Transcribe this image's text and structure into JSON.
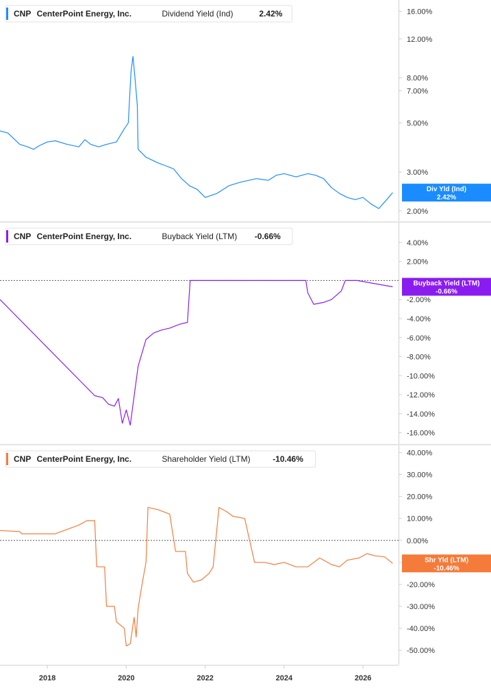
{
  "chart_data": [
    {
      "type": "line",
      "ticker": "CNP",
      "company": "CenterPoint Energy, Inc.",
      "metric": "Dividend Yield (Ind)",
      "current_value": "2.42%",
      "tag_label": "Div Yld (Ind)",
      "tag_value": "2.42%",
      "color": "#1a8cff",
      "y_scale": "log",
      "ylim": [
        1.9,
        17
      ],
      "y_ticks": [
        {
          "v": 16,
          "label": "16.00%"
        },
        {
          "v": 12,
          "label": "12.00%"
        },
        {
          "v": 8,
          "label": "8.00%"
        },
        {
          "v": 7,
          "label": "7.00%"
        },
        {
          "v": 5,
          "label": "5.00%"
        },
        {
          "v": 3,
          "label": "3.00%"
        },
        {
          "v": 2,
          "label": "2.00%"
        }
      ],
      "zero_line": false,
      "series": [
        {
          "values": [
            [
              2016.8,
              4.6
            ],
            [
              2017.0,
              4.5
            ],
            [
              2017.3,
              4.0
            ],
            [
              2017.5,
              3.9
            ],
            [
              2017.65,
              3.8
            ],
            [
              2017.8,
              3.95
            ],
            [
              2018.0,
              4.1
            ],
            [
              2018.2,
              4.15
            ],
            [
              2018.5,
              4.0
            ],
            [
              2018.8,
              3.9
            ],
            [
              2018.95,
              4.2
            ],
            [
              2019.1,
              4.0
            ],
            [
              2019.3,
              3.9
            ],
            [
              2019.5,
              4.0
            ],
            [
              2019.75,
              4.1
            ],
            [
              2019.85,
              4.4
            ],
            [
              2019.95,
              4.7
            ],
            [
              2020.05,
              5.0
            ],
            [
              2020.12,
              8.5
            ],
            [
              2020.17,
              10.0
            ],
            [
              2020.22,
              8.0
            ],
            [
              2020.28,
              6.0
            ],
            [
              2020.3,
              3.8
            ],
            [
              2020.5,
              3.5
            ],
            [
              2020.8,
              3.3
            ],
            [
              2021.0,
              3.2
            ],
            [
              2021.2,
              3.1
            ],
            [
              2021.4,
              2.8
            ],
            [
              2021.6,
              2.6
            ],
            [
              2021.8,
              2.5
            ],
            [
              2022.0,
              2.3
            ],
            [
              2022.3,
              2.4
            ],
            [
              2022.6,
              2.6
            ],
            [
              2022.9,
              2.7
            ],
            [
              2023.3,
              2.8
            ],
            [
              2023.6,
              2.75
            ],
            [
              2023.8,
              2.9
            ],
            [
              2024.0,
              2.95
            ],
            [
              2024.3,
              2.85
            ],
            [
              2024.6,
              2.95
            ],
            [
              2024.8,
              2.9
            ],
            [
              2025.0,
              2.8
            ],
            [
              2025.2,
              2.55
            ],
            [
              2025.4,
              2.4
            ],
            [
              2025.6,
              2.3
            ],
            [
              2025.8,
              2.25
            ],
            [
              2026.0,
              2.3
            ],
            [
              2026.2,
              2.15
            ],
            [
              2026.4,
              2.05
            ],
            [
              2026.6,
              2.25
            ],
            [
              2026.75,
              2.42
            ]
          ]
        }
      ]
    },
    {
      "type": "line",
      "ticker": "CNP",
      "company": "CenterPoint Energy, Inc.",
      "metric": "Buyback Yield (LTM)",
      "current_value": "-0.66%",
      "tag_label": "Buyback Yield (LTM)",
      "tag_value": "-0.66%",
      "color": "#8a1cf0",
      "y_scale": "linear",
      "ylim": [
        -16.6,
        5.5
      ],
      "y_ticks": [
        {
          "v": 4,
          "label": "4.00%"
        },
        {
          "v": 2,
          "label": "2.00%"
        },
        {
          "v": -2,
          "label": "-2.00%"
        },
        {
          "v": -4,
          "label": "-4.00%"
        },
        {
          "v": -6,
          "label": "-6.00%"
        },
        {
          "v": -8,
          "label": "-8.00%"
        },
        {
          "v": -10,
          "label": "-10.00%"
        },
        {
          "v": -12,
          "label": "-12.00%"
        },
        {
          "v": -14,
          "label": "-14.00%"
        },
        {
          "v": -16,
          "label": "-16.00%"
        }
      ],
      "zero_line": true,
      "series": [
        {
          "values": [
            [
              2016.8,
              -2.0
            ],
            [
              2019.2,
              -12.1
            ],
            [
              2019.4,
              -12.3
            ],
            [
              2019.55,
              -13.0
            ],
            [
              2019.7,
              -13.2
            ],
            [
              2019.8,
              -12.4
            ],
            [
              2019.9,
              -15.0
            ],
            [
              2020.0,
              -13.6
            ],
            [
              2020.1,
              -15.2
            ],
            [
              2020.3,
              -9.0
            ],
            [
              2020.5,
              -6.2
            ],
            [
              2020.7,
              -5.5
            ],
            [
              2020.9,
              -5.2
            ],
            [
              2021.1,
              -5.0
            ],
            [
              2021.35,
              -4.6
            ],
            [
              2021.55,
              -4.4
            ],
            [
              2021.62,
              0.0
            ],
            [
              2024.55,
              0.0
            ],
            [
              2024.6,
              -1.3
            ],
            [
              2024.75,
              -2.5
            ],
            [
              2025.0,
              -2.3
            ],
            [
              2025.2,
              -2.0
            ],
            [
              2025.45,
              -1.1
            ],
            [
              2025.55,
              0.0
            ],
            [
              2025.85,
              0.0
            ],
            [
              2026.75,
              -0.66
            ]
          ]
        }
      ]
    },
    {
      "type": "line",
      "ticker": "CNP",
      "company": "CenterPoint Energy, Inc.",
      "metric": "Shareholder Yield (LTM)",
      "current_value": "-10.46%",
      "tag_label": "Shr Yld (LTM)",
      "tag_value": "-10.46%",
      "color": "#f47b3a",
      "y_scale": "linear",
      "ylim": [
        -54,
        42
      ],
      "y_ticks": [
        {
          "v": 40,
          "label": "40.00%"
        },
        {
          "v": 30,
          "label": "30.00%"
        },
        {
          "v": 20,
          "label": "20.00%"
        },
        {
          "v": 10,
          "label": "10.00%"
        },
        {
          "v": 0,
          "label": "0.00%"
        },
        {
          "v": -10,
          "label": "-10.00%"
        },
        {
          "v": -20,
          "label": "-20.00%"
        },
        {
          "v": -30,
          "label": "-30.00%"
        },
        {
          "v": -40,
          "label": "-40.00%"
        },
        {
          "v": -50,
          "label": "-50.00%"
        }
      ],
      "zero_line": true,
      "series": [
        {
          "values": [
            [
              2016.8,
              4.5
            ],
            [
              2017.3,
              4.0
            ],
            [
              2017.35,
              3.0
            ],
            [
              2018.2,
              3.0
            ],
            [
              2018.5,
              5.0
            ],
            [
              2018.8,
              7.0
            ],
            [
              2019.0,
              9.0
            ],
            [
              2019.2,
              9.0
            ],
            [
              2019.25,
              -12.0
            ],
            [
              2019.45,
              -12.0
            ],
            [
              2019.5,
              -30.0
            ],
            [
              2019.7,
              -30.0
            ],
            [
              2019.75,
              -37.0
            ],
            [
              2019.95,
              -40.0
            ],
            [
              2020.0,
              -48.0
            ],
            [
              2020.1,
              -47.0
            ],
            [
              2020.2,
              -35.0
            ],
            [
              2020.25,
              -44.0
            ],
            [
              2020.3,
              -31.0
            ],
            [
              2020.4,
              -20.0
            ],
            [
              2020.5,
              -10.0
            ],
            [
              2020.55,
              15.0
            ],
            [
              2020.8,
              14.0
            ],
            [
              2021.1,
              12.0
            ],
            [
              2021.25,
              -5.0
            ],
            [
              2021.5,
              -5.0
            ],
            [
              2021.55,
              -15.0
            ],
            [
              2021.7,
              -19.0
            ],
            [
              2021.9,
              -18.0
            ],
            [
              2022.1,
              -15.0
            ],
            [
              2022.2,
              -12.0
            ],
            [
              2022.35,
              15.0
            ],
            [
              2022.55,
              13.0
            ],
            [
              2022.7,
              11.0
            ],
            [
              2023.0,
              10.0
            ],
            [
              2023.25,
              -10.0
            ],
            [
              2023.5,
              -10.0
            ],
            [
              2023.75,
              -11.0
            ],
            [
              2024.0,
              -10.0
            ],
            [
              2024.3,
              -12.0
            ],
            [
              2024.6,
              -12.0
            ],
            [
              2024.9,
              -8.0
            ],
            [
              2025.2,
              -11.0
            ],
            [
              2025.4,
              -12.0
            ],
            [
              2025.6,
              -9.0
            ],
            [
              2025.9,
              -8.0
            ],
            [
              2026.1,
              -6.0
            ],
            [
              2026.3,
              -7.0
            ],
            [
              2026.55,
              -7.5
            ],
            [
              2026.75,
              -10.46
            ]
          ]
        }
      ]
    }
  ],
  "x_axis": {
    "ticks": [
      {
        "v": 2018,
        "label": "2018"
      },
      {
        "v": 2020,
        "label": "2020"
      },
      {
        "v": 2022,
        "label": "2022"
      },
      {
        "v": 2024,
        "label": "2024"
      },
      {
        "v": 2026,
        "label": "2026"
      }
    ],
    "range": [
      2016.8,
      2026.9
    ]
  },
  "colors": {
    "axis": "#cfcfcf",
    "tick_text": "#333333",
    "zero_line": "#555555"
  }
}
